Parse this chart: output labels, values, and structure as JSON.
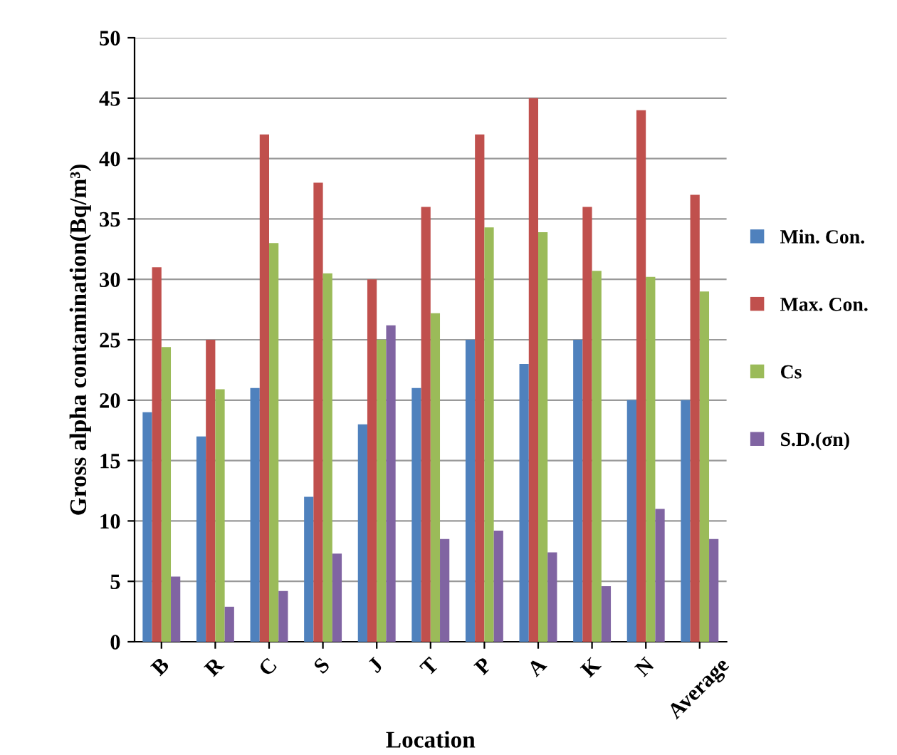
{
  "chart_data": {
    "type": "bar",
    "xlabel": "Location",
    "ylabel": "Gross alpha contamination(Bq/m³)",
    "categories": [
      "B",
      "R",
      "C",
      "S",
      "J",
      "T",
      "P",
      "A",
      "K",
      "N",
      "Average"
    ],
    "series": [
      {
        "name": "Min. Con.",
        "color": "#4f81bd",
        "values": [
          19,
          17,
          21,
          12,
          18,
          21,
          25,
          23,
          25,
          20,
          20
        ]
      },
      {
        "name": "Max. Con.",
        "color": "#c0504d",
        "values": [
          31,
          25,
          42,
          38,
          30,
          36,
          42,
          45,
          36,
          44,
          37
        ]
      },
      {
        "name": "Cs",
        "color": "#9bbb59",
        "values": [
          24.4,
          20.9,
          33,
          30.5,
          25,
          27.2,
          34.3,
          33.9,
          30.7,
          30.2,
          29
        ]
      },
      {
        "name": "S.D.(σn)",
        "color": "#8064a2",
        "values": [
          5.4,
          2.9,
          4.2,
          7.3,
          26.2,
          8.5,
          9.2,
          7.4,
          4.6,
          11,
          8.5
        ]
      }
    ],
    "ylim": [
      0,
      50
    ],
    "yticks": [
      0,
      5,
      10,
      15,
      20,
      25,
      30,
      35,
      40,
      45,
      50
    ],
    "grid": "y",
    "legend": "right"
  }
}
